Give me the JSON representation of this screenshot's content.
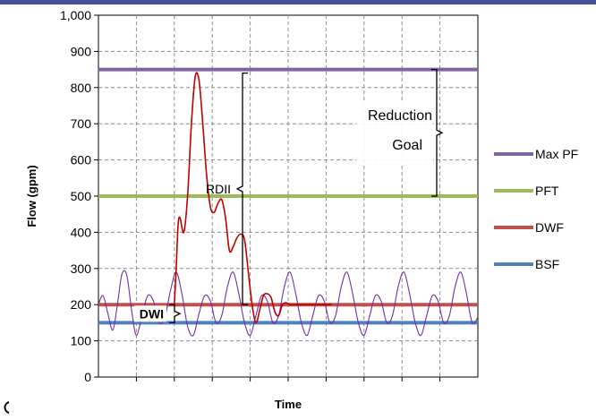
{
  "chart_data": {
    "type": "line",
    "ylabel": "Flow  (gpm)",
    "xlabel": "Time",
    "ylim": [
      0,
      1000
    ],
    "xlim": [
      0,
      10
    ],
    "yticks": [
      0,
      100,
      200,
      300,
      400,
      500,
      600,
      700,
      800,
      900,
      1000
    ],
    "ytick_labels": [
      "0",
      "100",
      "200",
      "300",
      "400",
      "500",
      "600",
      "700",
      "800",
      "900",
      "1,000"
    ],
    "xgrid": [
      1,
      2,
      3,
      4,
      5,
      6,
      7,
      8,
      9
    ],
    "grid": true,
    "legend_position": "right",
    "series": [
      {
        "name": "Max PF",
        "color": "#8064a2",
        "values": [
          850,
          850
        ]
      },
      {
        "name": "PFT",
        "color": "#9bbb59",
        "values": [
          500,
          500
        ]
      },
      {
        "name": "DWF",
        "color": "#c0504d",
        "values": [
          200,
          200
        ]
      },
      {
        "name": "BSF",
        "color": "#4f81bd",
        "values": [
          150,
          150
        ]
      }
    ],
    "curves": [
      {
        "role": "dry-weather-flow",
        "color": "#7030a0",
        "x": [
          0,
          0.12,
          0.25,
          0.38,
          0.5,
          0.62,
          0.75,
          0.88,
          1.0,
          1.15,
          1.3,
          1.45,
          1.6,
          1.75,
          1.9,
          2.05,
          2.2,
          2.35,
          2.5,
          2.65,
          2.8,
          2.95,
          3.1,
          3.25,
          3.4,
          3.55,
          3.7,
          3.85,
          4.0,
          4.15,
          4.3,
          4.45,
          4.6,
          4.75,
          4.9,
          5.05,
          5.2,
          5.35,
          5.5,
          5.65,
          5.8,
          5.95,
          6.1,
          6.25,
          6.4,
          6.55,
          6.7,
          6.85,
          7.0,
          7.15,
          7.3,
          7.45,
          7.6,
          7.75,
          7.9,
          8.05,
          8.2,
          8.35,
          8.5,
          8.65,
          8.8,
          8.95,
          9.1,
          9.25,
          9.4,
          9.55,
          9.7,
          9.85,
          10.0
        ],
        "y": [
          200,
          225,
          175,
          130,
          200,
          285,
          280,
          180,
          115,
          170,
          225,
          210,
          150,
          165,
          240,
          290,
          230,
          140,
          115,
          175,
          225,
          210,
          150,
          170,
          250,
          290,
          230,
          150,
          115,
          170,
          225,
          210,
          150,
          170,
          250,
          290,
          230,
          150,
          115,
          170,
          225,
          210,
          150,
          170,
          250,
          290,
          230,
          150,
          115,
          170,
          225,
          210,
          150,
          170,
          250,
          290,
          230,
          150,
          115,
          170,
          225,
          210,
          150,
          170,
          250,
          290,
          230,
          150,
          165
        ]
      },
      {
        "role": "wet-weather-flow",
        "color": "#c00000",
        "x": [
          2.0,
          2.05,
          2.1,
          2.15,
          2.25,
          2.35,
          2.45,
          2.55,
          2.65,
          2.75,
          2.85,
          2.95,
          3.05,
          3.15,
          3.25,
          3.35,
          3.45,
          3.55,
          3.65,
          3.75,
          3.85,
          3.95,
          4.05,
          4.15,
          4.25,
          4.35,
          4.45,
          4.55,
          4.65,
          4.75,
          4.85,
          4.95,
          5.05,
          5.15,
          5.25,
          5.35,
          5.45,
          5.55,
          5.65,
          5.75,
          5.85,
          5.95,
          6.05,
          6.15
        ],
        "y": [
          200,
          300,
          420,
          440,
          400,
          500,
          700,
          830,
          820,
          700,
          560,
          470,
          455,
          480,
          490,
          440,
          350,
          360,
          385,
          395,
          380,
          290,
          200,
          150,
          185,
          225,
          230,
          220,
          180,
          170,
          200,
          205,
          200,
          200,
          200,
          200,
          200,
          200,
          200,
          200,
          200,
          200,
          200,
          200
        ]
      }
    ],
    "annotations": [
      {
        "text": "RDII",
        "spans": [
          200,
          840
        ]
      },
      {
        "text": "DWI",
        "spans": [
          150,
          200
        ]
      },
      {
        "text": "Reduction",
        "spans": [
          500,
          850
        ]
      },
      {
        "text": "Goal",
        "spans": [
          500,
          850
        ]
      }
    ]
  }
}
